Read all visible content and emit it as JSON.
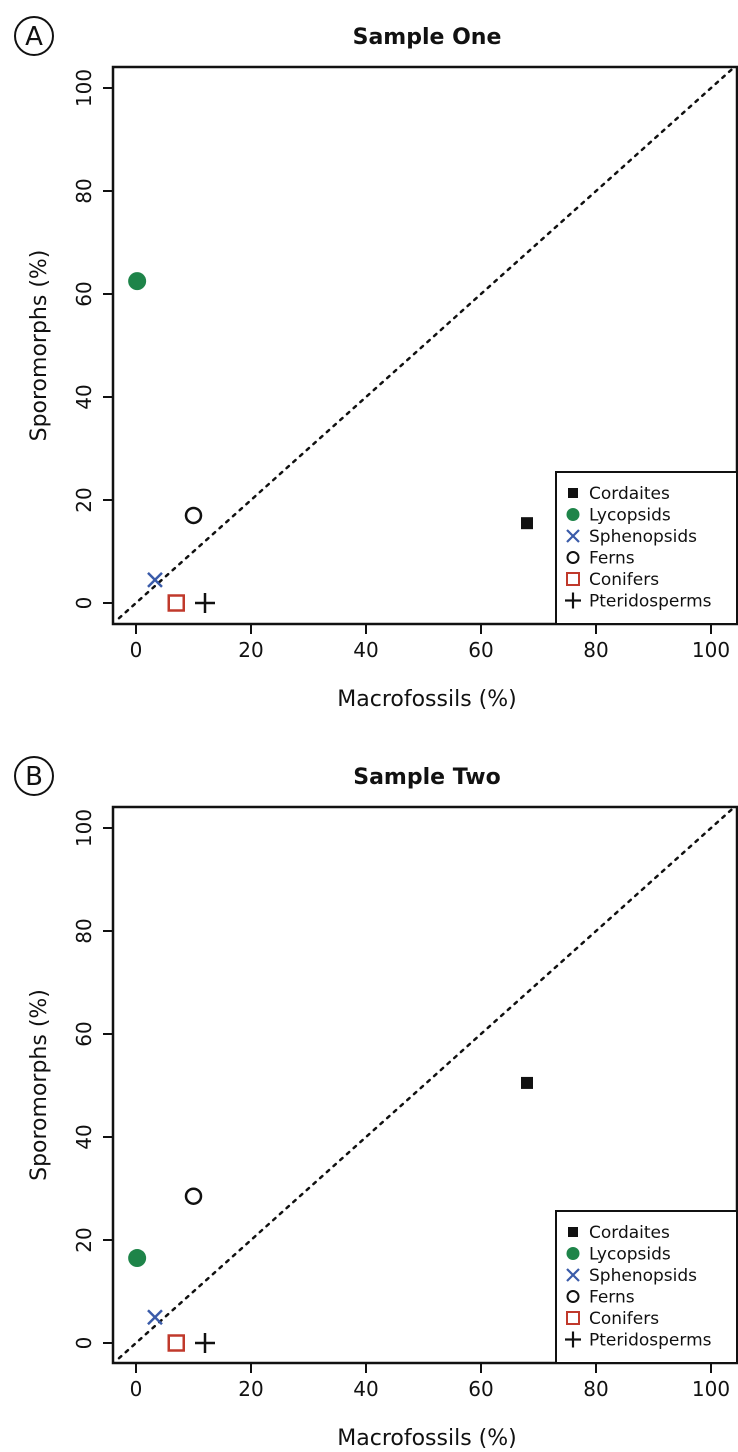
{
  "panels": [
    {
      "label": "A",
      "title": "Sample One",
      "xlabel": "Macrofossils (%)",
      "ylabel": "Sporomorphs (%)"
    },
    {
      "label": "B",
      "title": "Sample Two",
      "xlabel": "Macrofossils (%)",
      "ylabel": "Sporomorphs (%)"
    }
  ],
  "chart_data": [
    {
      "type": "scatter",
      "title": "Sample One",
      "xlabel": "Macrofossils (%)",
      "ylabel": "Sporomorphs (%)",
      "xlim": [
        0,
        100
      ],
      "ylim": [
        0,
        100
      ],
      "xticks": [
        "0",
        "20",
        "40",
        "60",
        "80",
        "100"
      ],
      "yticks": [
        "0",
        "20",
        "40",
        "60",
        "80",
        "100"
      ],
      "grid": false,
      "reference_line": "1:1 dotted diagonal",
      "legend_position": "bottom-right",
      "series": [
        {
          "name": "Cordaites",
          "marker": "filled-square",
          "color": "#111111",
          "x": 68,
          "y": 15.5
        },
        {
          "name": "Lycopsids",
          "marker": "filled-circle",
          "color": "#1e8449",
          "x": 0.2,
          "y": 62.5
        },
        {
          "name": "Sphenopsids",
          "marker": "x",
          "color": "#3a5ba9",
          "x": 3.3,
          "y": 4.5
        },
        {
          "name": "Ferns",
          "marker": "open-circle",
          "color": "#111111",
          "x": 10,
          "y": 17
        },
        {
          "name": "Conifers",
          "marker": "open-square",
          "color": "#c0392b",
          "x": 7,
          "y": 0
        },
        {
          "name": "Pteridosperms",
          "marker": "plus",
          "color": "#111111",
          "x": 12,
          "y": 0
        }
      ]
    },
    {
      "type": "scatter",
      "title": "Sample Two",
      "xlabel": "Macrofossils (%)",
      "ylabel": "Sporomorphs (%)",
      "xlim": [
        0,
        100
      ],
      "ylim": [
        0,
        100
      ],
      "xticks": [
        "0",
        "20",
        "40",
        "60",
        "80",
        "100"
      ],
      "yticks": [
        "0",
        "20",
        "40",
        "60",
        "80",
        "100"
      ],
      "grid": false,
      "reference_line": "1:1 dotted diagonal",
      "legend_position": "bottom-right",
      "series": [
        {
          "name": "Cordaites",
          "marker": "filled-square",
          "color": "#111111",
          "x": 68,
          "y": 50.5
        },
        {
          "name": "Lycopsids",
          "marker": "filled-circle",
          "color": "#1e8449",
          "x": 0.2,
          "y": 16.5
        },
        {
          "name": "Sphenopsids",
          "marker": "x",
          "color": "#3a5ba9",
          "x": 3.3,
          "y": 5
        },
        {
          "name": "Ferns",
          "marker": "open-circle",
          "color": "#111111",
          "x": 10,
          "y": 28.5
        },
        {
          "name": "Conifers",
          "marker": "open-square",
          "color": "#c0392b",
          "x": 7,
          "y": 0
        },
        {
          "name": "Pteridosperms",
          "marker": "plus",
          "color": "#111111",
          "x": 12,
          "y": 0
        }
      ]
    }
  ]
}
